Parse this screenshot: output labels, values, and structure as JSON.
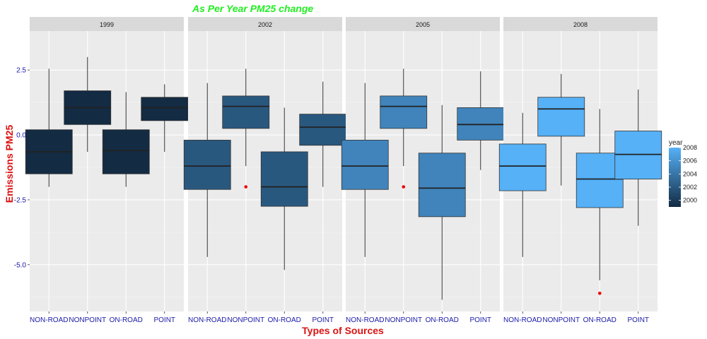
{
  "chart_data": {
    "type": "boxplot",
    "title": "As Per Year PM25 change",
    "xlabel": "Types of Sources",
    "ylabel": "Emissions PM25",
    "ylim": [
      -6.8,
      4.0
    ],
    "y_ticks": [
      2.5,
      0.0,
      -2.5,
      -5.0
    ],
    "y_tick_labels": [
      "2.5",
      "0.0",
      "-2.5",
      "-5.0"
    ],
    "categories": [
      "NON-ROAD",
      "NONPOINT",
      "ON-ROAD",
      "POINT"
    ],
    "grid": true,
    "legend": {
      "title": "year",
      "placement": "right",
      "labels": [
        "2008",
        "2006",
        "2004",
        "2002",
        "2000"
      ],
      "range": [
        1999,
        2008
      ]
    },
    "colors": {
      "title": "#22ee22",
      "axis_title": "#dd1111",
      "tick_label": "#1a1aaa",
      "outlier": "#ee0000",
      "panel_bg": "#ebebeb",
      "strip_bg": "#d9d9d9",
      "gradient_low": "#132b43",
      "gradient_high": "#56b1f7"
    },
    "facets": [
      {
        "label": "1999",
        "year": 1999,
        "boxes": [
          {
            "category": "NON-ROAD",
            "whisker_low": -2.0,
            "q1": -1.5,
            "median": -0.65,
            "q3": 0.2,
            "whisker_high": 2.55,
            "outliers": []
          },
          {
            "category": "NONPOINT",
            "whisker_low": -0.65,
            "q1": 0.4,
            "median": 1.05,
            "q3": 1.7,
            "whisker_high": 3.0,
            "outliers": []
          },
          {
            "category": "ON-ROAD",
            "whisker_low": -2.0,
            "q1": -1.5,
            "median": -0.6,
            "q3": 0.2,
            "whisker_high": 1.65,
            "outliers": []
          },
          {
            "category": "POINT",
            "whisker_low": -0.65,
            "q1": 0.55,
            "median": 1.05,
            "q3": 1.45,
            "whisker_high": 1.95,
            "outliers": []
          }
        ]
      },
      {
        "label": "2002",
        "year": 2002,
        "boxes": [
          {
            "category": "NON-ROAD",
            "whisker_low": -4.7,
            "q1": -2.1,
            "median": -1.2,
            "q3": -0.2,
            "whisker_high": 2.0,
            "outliers": []
          },
          {
            "category": "NONPOINT",
            "whisker_low": -1.2,
            "q1": 0.25,
            "median": 1.1,
            "q3": 1.5,
            "whisker_high": 2.55,
            "outliers": [
              -2.0
            ]
          },
          {
            "category": "ON-ROAD",
            "whisker_low": -5.2,
            "q1": -2.75,
            "median": -2.0,
            "q3": -0.65,
            "whisker_high": 1.05,
            "outliers": []
          },
          {
            "category": "POINT",
            "whisker_low": -2.0,
            "q1": -0.4,
            "median": 0.3,
            "q3": 0.8,
            "whisker_high": 2.05,
            "outliers": []
          }
        ]
      },
      {
        "label": "2005",
        "year": 2005,
        "boxes": [
          {
            "category": "NON-ROAD",
            "whisker_low": -4.7,
            "q1": -2.1,
            "median": -1.2,
            "q3": -0.2,
            "whisker_high": 2.0,
            "outliers": []
          },
          {
            "category": "NONPOINT",
            "whisker_low": -1.2,
            "q1": 0.25,
            "median": 1.1,
            "q3": 1.5,
            "whisker_high": 2.55,
            "outliers": [
              -2.0
            ]
          },
          {
            "category": "ON-ROAD",
            "whisker_low": -6.35,
            "q1": -3.15,
            "median": -2.05,
            "q3": -0.7,
            "whisker_high": 1.15,
            "outliers": []
          },
          {
            "category": "POINT",
            "whisker_low": -1.35,
            "q1": -0.2,
            "median": 0.4,
            "q3": 1.05,
            "whisker_high": 2.45,
            "outliers": []
          }
        ]
      },
      {
        "label": "2008",
        "year": 2008,
        "boxes": [
          {
            "category": "NON-ROAD",
            "whisker_low": -4.7,
            "q1": -2.15,
            "median": -1.2,
            "q3": -0.35,
            "whisker_high": 0.85,
            "outliers": []
          },
          {
            "category": "NONPOINT",
            "whisker_low": -1.95,
            "q1": -0.05,
            "median": 1.0,
            "q3": 1.45,
            "whisker_high": 2.35,
            "outliers": []
          },
          {
            "category": "ON-ROAD",
            "whisker_low": -5.6,
            "q1": -2.8,
            "median": -1.7,
            "q3": -0.7,
            "whisker_high": 1.0,
            "outliers": [
              -6.1
            ]
          },
          {
            "category": "POINT",
            "whisker_low": -3.5,
            "q1": -1.7,
            "median": -0.75,
            "q3": 0.15,
            "whisker_high": 1.75,
            "outliers": []
          }
        ]
      }
    ]
  }
}
